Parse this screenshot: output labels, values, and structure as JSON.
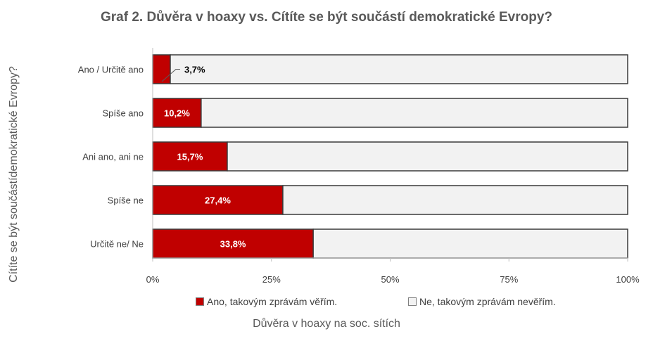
{
  "chart_data": {
    "type": "bar",
    "orientation": "horizontal",
    "stacked": true,
    "percent_stacked": true,
    "title": "Graf 2. Důvěra v hoaxy vs. Cítíte se být součástí demokratické Evropy?",
    "xlabel": "Důvěra v hoaxy na soc. sítích",
    "ylabel": "Cítíte se být součástídemokratické Evropy?",
    "categories": [
      "Ano / Určitě ano",
      "Spíše ano",
      "Ani ano, ani ne",
      "Spíše ne",
      "Určitě ne/ Ne"
    ],
    "series": [
      {
        "name": "Ano, takovým zprávám věřím.",
        "values": [
          3.7,
          10.2,
          15.7,
          27.4,
          33.8
        ],
        "color": "#C00000",
        "data_labels": [
          "3,7%",
          "10,2%",
          "15,7%",
          "27,4%",
          "33,8%"
        ]
      },
      {
        "name": "Ne, takovým zprávám nevěřím.",
        "values": [
          96.3,
          89.8,
          84.3,
          72.6,
          66.2
        ],
        "color": "#F2F2F2"
      }
    ],
    "xlim": [
      0,
      100
    ],
    "xticks": [
      0,
      25,
      50,
      75,
      100
    ],
    "xtick_labels": [
      "0%",
      "25%",
      "50%",
      "75%",
      "100%"
    ],
    "legend_position": "bottom",
    "grid": false
  }
}
